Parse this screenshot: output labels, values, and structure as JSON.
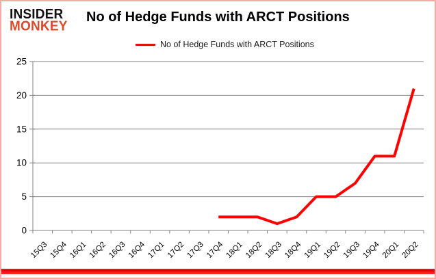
{
  "logo": {
    "line1": "INSIDER",
    "line2": "MONKEY",
    "accent_color": "#d94b2c"
  },
  "legend": {
    "label": "No of Hedge Funds with ARCT Positions",
    "swatch_color": "#da1212"
  },
  "chart_data": {
    "type": "line",
    "title": "No of Hedge Funds with ARCT Positions",
    "categories": [
      "15Q3",
      "15Q4",
      "16Q1",
      "16Q2",
      "16Q3",
      "16Q4",
      "17Q1",
      "17Q2",
      "17Q3",
      "17Q4",
      "18Q1",
      "18Q2",
      "18Q3",
      "18Q4",
      "19Q1",
      "19Q2",
      "19Q3",
      "19Q4",
      "20Q1",
      "20Q2"
    ],
    "series": [
      {
        "name": "No of Hedge Funds with ARCT Positions",
        "color": "#fe0000",
        "values": [
          null,
          null,
          null,
          null,
          null,
          null,
          null,
          null,
          null,
          2,
          2,
          2,
          1,
          2,
          5,
          5,
          7,
          11,
          11,
          21
        ]
      }
    ],
    "ylim": [
      0,
      25
    ],
    "yticks": [
      0,
      5,
      10,
      15,
      20,
      25
    ],
    "grid": "horizontal",
    "legend_position": "top-center",
    "gridline_color": "#808080",
    "axis_color": "#808080",
    "label_color": "#000000"
  }
}
